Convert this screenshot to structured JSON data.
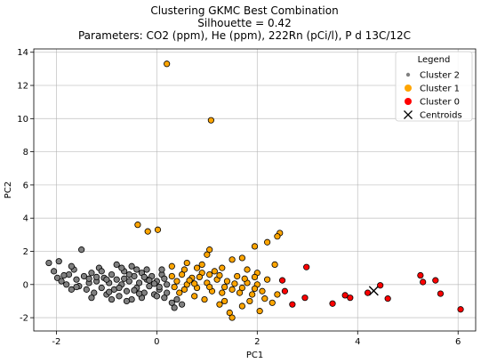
{
  "chart_data": {
    "type": "scatter",
    "title": [
      "Clustering GKMC Best Combination",
      "Silhouette = 0.42",
      "Parameters: CO2 (ppm), He (ppm), 222Rn (pCi/l), P d 13C/12C"
    ],
    "xlabel": "PC1",
    "ylabel": "PC2",
    "xlim": [
      -2.45,
      6.35
    ],
    "ylim": [
      -2.8,
      14.2
    ],
    "xticks": [
      -2,
      0,
      2,
      4,
      6
    ],
    "yticks": [
      -2,
      0,
      2,
      4,
      6,
      8,
      10,
      12,
      14
    ],
    "grid": true,
    "legend": {
      "title": "Legend",
      "placement": "top-right",
      "entries": [
        "Cluster 2",
        "Cluster 1",
        "Cluster 0",
        "Centroids"
      ]
    },
    "series": [
      {
        "name": "Cluster 2",
        "color": "#808080",
        "points": [
          [
            -2.15,
            1.3
          ],
          [
            -1.95,
            1.4
          ],
          [
            -1.98,
            0.4
          ],
          [
            -2.05,
            0.8
          ],
          [
            -1.9,
            0.2
          ],
          [
            -1.8,
            0.0
          ],
          [
            -1.75,
            0.6
          ],
          [
            -1.7,
            -0.3
          ],
          [
            -1.65,
            0.9
          ],
          [
            -1.6,
            0.3
          ],
          [
            -1.5,
            2.1
          ],
          [
            -1.55,
            -0.1
          ],
          [
            -1.45,
            0.5
          ],
          [
            -1.4,
            -0.3
          ],
          [
            -1.35,
            0.1
          ],
          [
            -1.3,
            0.7
          ],
          [
            -1.25,
            -0.5
          ],
          [
            -1.2,
            0.2
          ],
          [
            -1.15,
            1.0
          ],
          [
            -1.1,
            -0.2
          ],
          [
            -1.05,
            0.4
          ],
          [
            -1.0,
            -0.6
          ],
          [
            -0.95,
            0.1
          ],
          [
            -0.9,
            0.6
          ],
          [
            -0.85,
            -0.3
          ],
          [
            -0.8,
            0.3
          ],
          [
            -0.75,
            -0.7
          ],
          [
            -0.7,
            0.0
          ],
          [
            -0.65,
            0.8
          ],
          [
            -0.6,
            -0.4
          ],
          [
            -0.55,
            0.2
          ],
          [
            -0.5,
            -0.9
          ],
          [
            -0.45,
            0.5
          ],
          [
            -0.4,
            -0.2
          ],
          [
            -0.35,
            0.1
          ],
          [
            -0.3,
            0.7
          ],
          [
            -0.25,
            -0.5
          ],
          [
            -0.2,
            0.3
          ],
          [
            -0.15,
            -0.1
          ],
          [
            -0.1,
            0.5
          ],
          [
            -0.05,
            -0.6
          ],
          [
            0.0,
            0.2
          ],
          [
            0.05,
            -0.3
          ],
          [
            0.1,
            0.6
          ],
          [
            0.15,
            -0.8
          ],
          [
            0.2,
            0.0
          ],
          [
            -1.3,
            -0.8
          ],
          [
            -1.1,
            0.8
          ],
          [
            -0.9,
            -0.9
          ],
          [
            -0.7,
            1.0
          ],
          [
            -0.6,
            -1.0
          ],
          [
            -0.4,
            0.9
          ],
          [
            -0.3,
            -0.8
          ],
          [
            -0.2,
            0.9
          ],
          [
            0.0,
            -0.7
          ],
          [
            0.1,
            0.9
          ],
          [
            0.2,
            -0.5
          ],
          [
            0.3,
            -1.1
          ],
          [
            0.35,
            -1.4
          ],
          [
            0.4,
            -0.9
          ],
          [
            0.5,
            -1.2
          ],
          [
            -0.8,
            1.2
          ],
          [
            -0.5,
            1.1
          ],
          [
            -1.2,
            0.45
          ],
          [
            -0.95,
            -0.45
          ],
          [
            -0.65,
            0.35
          ],
          [
            -0.45,
            -0.35
          ],
          [
            -0.25,
            0.45
          ],
          [
            -0.05,
            0.05
          ],
          [
            0.15,
            0.35
          ],
          [
            -1.7,
            1.1
          ],
          [
            -1.85,
            0.55
          ],
          [
            -1.6,
            -0.15
          ],
          [
            -1.0,
            0.3
          ],
          [
            -0.55,
            0.6
          ],
          [
            -0.35,
            -0.55
          ],
          [
            -0.15,
            0.25
          ],
          [
            0.05,
            -0.15
          ],
          [
            -0.75,
            -0.2
          ],
          [
            -1.35,
            0.35
          ]
        ]
      },
      {
        "name": "Cluster 1",
        "color": "#ffa500",
        "points": [
          [
            0.2,
            13.3
          ],
          [
            1.08,
            9.9
          ],
          [
            -0.38,
            3.6
          ],
          [
            -0.18,
            3.2
          ],
          [
            0.02,
            3.3
          ],
          [
            2.45,
            3.1
          ],
          [
            2.4,
            2.9
          ],
          [
            1.95,
            2.3
          ],
          [
            2.2,
            2.55
          ],
          [
            1.05,
            2.1
          ],
          [
            1.0,
            1.8
          ],
          [
            1.7,
            1.6
          ],
          [
            1.5,
            1.5
          ],
          [
            0.3,
            1.1
          ],
          [
            0.6,
            1.3
          ],
          [
            0.9,
            1.2
          ],
          [
            1.3,
            1.0
          ],
          [
            2.35,
            1.2
          ],
          [
            1.8,
            0.9
          ],
          [
            2.0,
            0.7
          ],
          [
            0.3,
            0.5
          ],
          [
            0.4,
            0.2
          ],
          [
            0.5,
            0.6
          ],
          [
            0.6,
            0.0
          ],
          [
            0.7,
            0.4
          ],
          [
            0.8,
            -0.2
          ],
          [
            0.9,
            0.7
          ],
          [
            1.0,
            0.1
          ],
          [
            1.1,
            -0.4
          ],
          [
            1.2,
            0.3
          ],
          [
            1.3,
            -0.5
          ],
          [
            1.4,
            0.2
          ],
          [
            1.5,
            -0.3
          ],
          [
            1.6,
            0.5
          ],
          [
            1.7,
            -0.2
          ],
          [
            1.8,
            0.1
          ],
          [
            1.9,
            -0.6
          ],
          [
            2.0,
            0.0
          ],
          [
            2.1,
            -0.4
          ],
          [
            2.2,
            0.3
          ],
          [
            0.45,
            -0.5
          ],
          [
            0.55,
            0.9
          ],
          [
            0.75,
            -0.7
          ],
          [
            0.95,
            -0.9
          ],
          [
            1.15,
            0.8
          ],
          [
            1.25,
            -1.2
          ],
          [
            1.35,
            -1.0
          ],
          [
            1.45,
            -1.7
          ],
          [
            1.5,
            -2.0
          ],
          [
            1.7,
            -1.3
          ],
          [
            1.85,
            -1.0
          ],
          [
            2.05,
            -1.6
          ],
          [
            2.3,
            -1.1
          ],
          [
            2.4,
            -0.6
          ],
          [
            0.65,
            0.25
          ],
          [
            0.85,
            0.45
          ],
          [
            1.05,
            0.6
          ],
          [
            1.25,
            0.55
          ],
          [
            1.55,
            0.05
          ],
          [
            1.75,
            0.35
          ],
          [
            1.95,
            0.45
          ],
          [
            0.35,
            -0.15
          ],
          [
            0.55,
            -0.3
          ],
          [
            0.75,
            0.05
          ],
          [
            1.05,
            -0.15
          ],
          [
            1.35,
            -0.15
          ],
          [
            1.65,
            -0.5
          ],
          [
            1.95,
            -0.25
          ],
          [
            2.15,
            -0.85
          ],
          [
            0.8,
            1.0
          ]
        ]
      },
      {
        "name": "Cluster 0",
        "color": "#ff0000",
        "points": [
          [
            2.5,
            0.25
          ],
          [
            2.55,
            -0.4
          ],
          [
            2.7,
            -1.2
          ],
          [
            2.95,
            -0.8
          ],
          [
            2.98,
            1.05
          ],
          [
            3.5,
            -1.15
          ],
          [
            3.75,
            -0.65
          ],
          [
            3.85,
            -0.8
          ],
          [
            4.2,
            -0.5
          ],
          [
            4.45,
            -0.05
          ],
          [
            4.6,
            -0.85
          ],
          [
            5.25,
            0.55
          ],
          [
            5.3,
            0.15
          ],
          [
            5.55,
            0.25
          ],
          [
            5.65,
            -0.55
          ],
          [
            6.05,
            -1.5
          ]
        ]
      }
    ],
    "centroids": [
      [
        4.32,
        -0.38
      ]
    ]
  }
}
